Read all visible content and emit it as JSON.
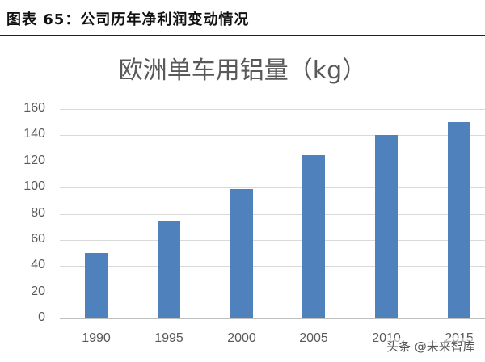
{
  "header": {
    "title": "图表 65：公司历年净利润变动情况"
  },
  "chart_data": {
    "type": "bar",
    "title": "欧洲单车用铝量（kg）",
    "categories": [
      "1990",
      "1995",
      "2000",
      "2005",
      "2010",
      "2015"
    ],
    "values": [
      50,
      75,
      99,
      125,
      140,
      150
    ],
    "xlabel": "",
    "ylabel": "",
    "ylim": [
      0,
      160
    ],
    "yticks": [
      "0",
      "20",
      "40",
      "60",
      "80",
      "100",
      "120",
      "140",
      "160"
    ],
    "grid": true,
    "legend": "none",
    "bar_color": "#4f81bd"
  },
  "watermark": "头条 @未来智库"
}
